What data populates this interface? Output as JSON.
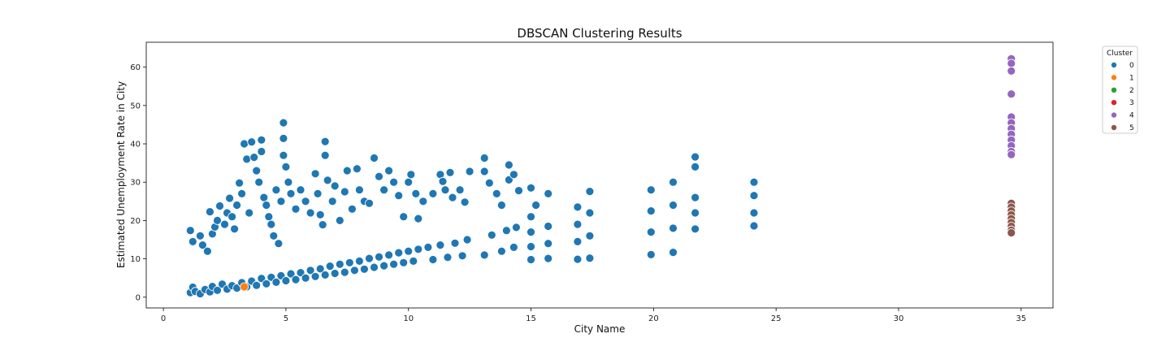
{
  "chart_data": {
    "type": "scatter",
    "title": "DBSCAN Clustering Results",
    "xlabel": "City Name",
    "ylabel": "Estimated Unemployment Rate in City",
    "xlim": [
      -0.7,
      36.3
    ],
    "ylim": [
      -2.8,
      66.5
    ],
    "xticks": [
      0,
      5,
      10,
      15,
      20,
      25,
      30,
      35
    ],
    "yticks": [
      0,
      10,
      20,
      30,
      40,
      50,
      60
    ],
    "grid": false,
    "legend": {
      "title": "Cluster",
      "placement": "outside-top-right"
    },
    "series": [
      {
        "name": "0",
        "color": "#1f77b4",
        "points": [
          [
            1.1,
            1.2
          ],
          [
            1.2,
            2.6
          ],
          [
            1.3,
            1.5
          ],
          [
            1.5,
            0.9
          ],
          [
            1.7,
            2.0
          ],
          [
            1.9,
            1.4
          ],
          [
            2.0,
            2.8
          ],
          [
            2.2,
            1.8
          ],
          [
            2.4,
            3.4
          ],
          [
            2.6,
            2.1
          ],
          [
            2.8,
            3.0
          ],
          [
            3.0,
            2.4
          ],
          [
            3.2,
            3.8
          ],
          [
            3.4,
            2.7
          ],
          [
            3.6,
            4.2
          ],
          [
            3.8,
            3.1
          ],
          [
            4.0,
            4.9
          ],
          [
            4.2,
            3.5
          ],
          [
            4.4,
            5.2
          ],
          [
            4.6,
            3.9
          ],
          [
            4.8,
            5.6
          ],
          [
            5.0,
            4.3
          ],
          [
            5.2,
            6.1
          ],
          [
            5.4,
            4.6
          ],
          [
            5.6,
            6.4
          ],
          [
            5.8,
            5.0
          ],
          [
            6.0,
            7.0
          ],
          [
            6.2,
            5.4
          ],
          [
            6.4,
            7.4
          ],
          [
            6.6,
            5.8
          ],
          [
            6.8,
            8.1
          ],
          [
            7.0,
            6.2
          ],
          [
            7.2,
            8.6
          ],
          [
            7.4,
            6.5
          ],
          [
            7.6,
            9.0
          ],
          [
            7.8,
            7.0
          ],
          [
            8.0,
            9.4
          ],
          [
            8.2,
            7.3
          ],
          [
            8.4,
            10.1
          ],
          [
            8.6,
            7.8
          ],
          [
            8.8,
            10.5
          ],
          [
            9.0,
            8.2
          ],
          [
            9.2,
            11.0
          ],
          [
            9.4,
            8.6
          ],
          [
            9.6,
            11.6
          ],
          [
            9.8,
            9.0
          ],
          [
            10.0,
            12.0
          ],
          [
            10.2,
            9.4
          ],
          [
            10.4,
            12.5
          ],
          [
            10.8,
            13.0
          ],
          [
            11.0,
            9.8
          ],
          [
            11.3,
            13.6
          ],
          [
            11.6,
            10.4
          ],
          [
            11.9,
            14.1
          ],
          [
            12.2,
            10.8
          ],
          [
            12.4,
            15.0
          ],
          [
            13.1,
            11.0
          ],
          [
            13.4,
            16.2
          ],
          [
            13.8,
            12.0
          ],
          [
            14.0,
            17.4
          ],
          [
            14.3,
            13.0
          ],
          [
            14.4,
            18.2
          ],
          [
            15.0,
            9.8
          ],
          [
            15.0,
            13.2
          ],
          [
            15.0,
            17.0
          ],
          [
            15.0,
            21.0
          ],
          [
            15.7,
            10.1
          ],
          [
            15.7,
            14.0
          ],
          [
            15.7,
            18.5
          ],
          [
            16.9,
            9.9
          ],
          [
            16.9,
            14.5
          ],
          [
            16.9,
            19.0
          ],
          [
            16.9,
            23.5
          ],
          [
            17.4,
            10.2
          ],
          [
            17.4,
            16.0
          ],
          [
            17.4,
            22.0
          ],
          [
            17.4,
            27.6
          ],
          [
            19.9,
            11.1
          ],
          [
            19.9,
            17.0
          ],
          [
            19.9,
            22.5
          ],
          [
            19.9,
            28.0
          ],
          [
            20.8,
            11.7
          ],
          [
            20.8,
            18.0
          ],
          [
            20.8,
            24.0
          ],
          [
            20.8,
            30.0
          ],
          [
            21.7,
            17.8
          ],
          [
            21.7,
            22.0
          ],
          [
            21.7,
            26.0
          ],
          [
            21.7,
            34.0
          ],
          [
            21.7,
            36.6
          ],
          [
            24.1,
            18.6
          ],
          [
            24.1,
            22.0
          ],
          [
            24.1,
            26.5
          ],
          [
            24.1,
            30.0
          ],
          [
            1.1,
            17.4
          ],
          [
            1.2,
            14.5
          ],
          [
            1.5,
            16.0
          ],
          [
            1.6,
            13.6
          ],
          [
            1.8,
            12.0
          ],
          [
            1.9,
            22.3
          ],
          [
            2.0,
            16.5
          ],
          [
            2.1,
            18.3
          ],
          [
            2.2,
            20.0
          ],
          [
            2.3,
            23.8
          ],
          [
            2.5,
            19.0
          ],
          [
            2.6,
            22.0
          ],
          [
            2.7,
            25.8
          ],
          [
            2.8,
            21.0
          ],
          [
            2.9,
            17.8
          ],
          [
            3.0,
            24.0
          ],
          [
            3.1,
            29.8
          ],
          [
            3.2,
            27.0
          ],
          [
            3.3,
            40.0
          ],
          [
            3.4,
            36.0
          ],
          [
            3.5,
            22.0
          ],
          [
            3.6,
            40.5
          ],
          [
            3.7,
            36.5
          ],
          [
            3.8,
            33.0
          ],
          [
            3.9,
            30.0
          ],
          [
            4.0,
            38.0
          ],
          [
            4.0,
            41.0
          ],
          [
            4.1,
            26.0
          ],
          [
            4.2,
            24.0
          ],
          [
            4.3,
            21.0
          ],
          [
            4.4,
            19.0
          ],
          [
            4.5,
            16.0
          ],
          [
            4.6,
            28.0
          ],
          [
            4.7,
            14.0
          ],
          [
            4.8,
            25.0
          ],
          [
            4.9,
            45.5
          ],
          [
            4.9,
            41.4
          ],
          [
            4.9,
            37.0
          ],
          [
            5.0,
            34.0
          ],
          [
            5.1,
            30.0
          ],
          [
            5.2,
            27.0
          ],
          [
            5.4,
            23.0
          ],
          [
            5.6,
            28.0
          ],
          [
            5.8,
            25.0
          ],
          [
            6.0,
            22.0
          ],
          [
            6.2,
            32.2
          ],
          [
            6.3,
            27.0
          ],
          [
            6.4,
            21.5
          ],
          [
            6.5,
            18.9
          ],
          [
            6.6,
            40.6
          ],
          [
            6.6,
            37.0
          ],
          [
            6.7,
            30.5
          ],
          [
            6.9,
            25.0
          ],
          [
            7.0,
            29.0
          ],
          [
            7.2,
            20.0
          ],
          [
            7.4,
            27.5
          ],
          [
            7.5,
            33.0
          ],
          [
            7.7,
            23.0
          ],
          [
            7.9,
            33.5
          ],
          [
            8.0,
            28.0
          ],
          [
            8.2,
            25.0
          ],
          [
            8.4,
            24.5
          ],
          [
            8.6,
            36.3
          ],
          [
            8.8,
            31.5
          ],
          [
            9.0,
            28.0
          ],
          [
            9.2,
            33.0
          ],
          [
            9.4,
            30.0
          ],
          [
            9.6,
            26.5
          ],
          [
            9.8,
            21.0
          ],
          [
            10.0,
            30.0
          ],
          [
            10.1,
            32.0
          ],
          [
            10.3,
            27.0
          ],
          [
            10.4,
            20.5
          ],
          [
            10.6,
            25.0
          ],
          [
            11.0,
            27.0
          ],
          [
            11.3,
            32.0
          ],
          [
            11.4,
            30.2
          ],
          [
            11.5,
            28.0
          ],
          [
            11.7,
            32.5
          ],
          [
            11.8,
            26.0
          ],
          [
            12.1,
            28.0
          ],
          [
            12.3,
            24.8
          ],
          [
            12.5,
            32.8
          ],
          [
            13.1,
            32.8
          ],
          [
            13.1,
            36.3
          ],
          [
            13.3,
            29.8
          ],
          [
            13.6,
            27.0
          ],
          [
            13.8,
            24.0
          ],
          [
            14.1,
            34.5
          ],
          [
            14.1,
            30.6
          ],
          [
            14.3,
            32.0
          ],
          [
            14.5,
            27.8
          ],
          [
            15.0,
            28.5
          ],
          [
            15.2,
            24.0
          ],
          [
            15.7,
            27.0
          ]
        ]
      },
      {
        "name": "1",
        "color": "#ff7f0e",
        "points": [
          [
            3.3,
            2.7
          ]
        ]
      },
      {
        "name": "2",
        "color": "#2ca02c",
        "points": []
      },
      {
        "name": "3",
        "color": "#d62728",
        "points": []
      },
      {
        "name": "4",
        "color": "#9467bd",
        "points": [
          [
            34.6,
            62.2
          ],
          [
            34.6,
            61.0
          ],
          [
            34.6,
            59.0
          ],
          [
            34.6,
            53.0
          ],
          [
            34.6,
            47.0
          ],
          [
            34.6,
            45.5
          ],
          [
            34.6,
            44.0
          ],
          [
            34.6,
            42.5
          ],
          [
            34.6,
            41.0
          ],
          [
            34.6,
            39.5
          ],
          [
            34.6,
            38.0
          ],
          [
            34.6,
            37.2
          ]
        ]
      },
      {
        "name": "5",
        "color": "#8c564b",
        "points": [
          [
            34.6,
            24.5
          ],
          [
            34.6,
            23.5
          ],
          [
            34.6,
            22.5
          ],
          [
            34.6,
            21.5
          ],
          [
            34.6,
            20.5
          ],
          [
            34.6,
            19.5
          ],
          [
            34.6,
            18.5
          ],
          [
            34.6,
            17.5
          ],
          [
            34.6,
            16.8
          ]
        ]
      }
    ]
  }
}
